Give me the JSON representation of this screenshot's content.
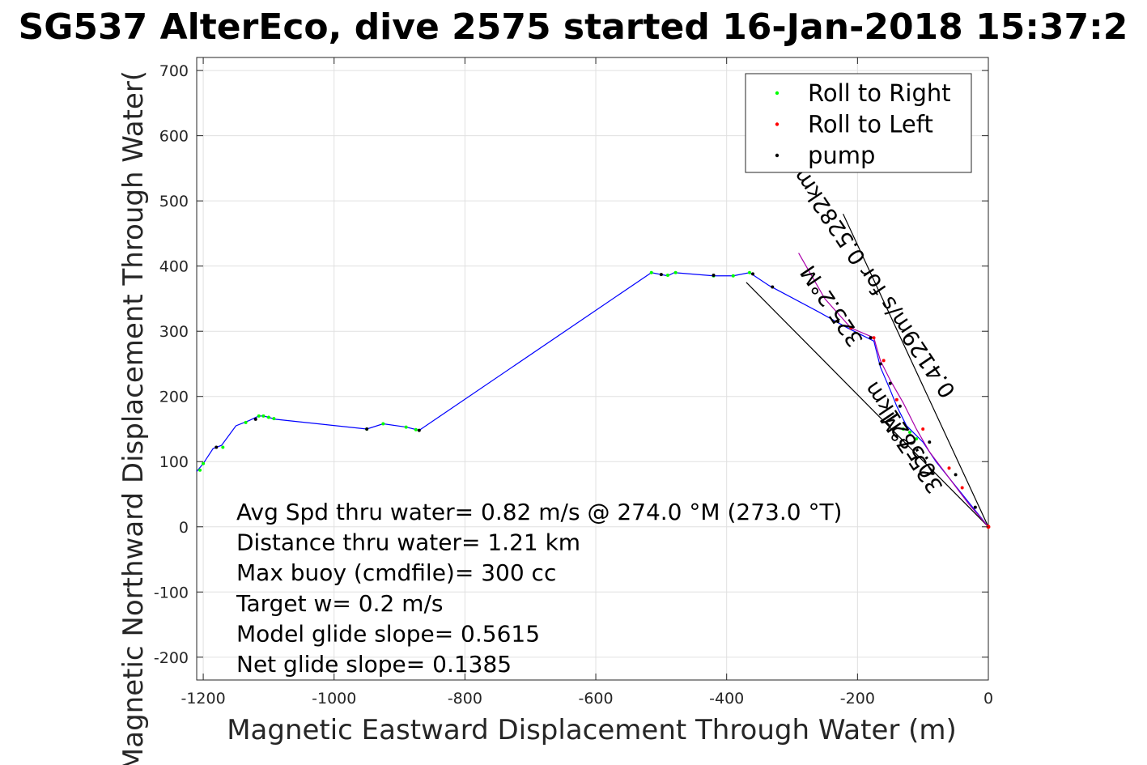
{
  "chart_data": {
    "type": "line",
    "title": "SG537 AlterEco, dive 2575 started 16-Jan-2018 15:37:2",
    "xlabel": "Magnetic Eastward Displacement Through Water (m)",
    "ylabel": "Magnetic Northward Displacement Through Water(",
    "xlim": [
      -1210,
      0
    ],
    "ylim": [
      -235,
      720
    ],
    "xticks": [
      -1200,
      -1000,
      -800,
      -600,
      -400,
      -200,
      0
    ],
    "yticks": [
      -200,
      -100,
      0,
      100,
      200,
      300,
      400,
      500,
      600,
      700
    ],
    "xtick_labels": [
      "-1200",
      "-1000",
      "-800",
      "-600",
      "-400",
      "-200",
      "0"
    ],
    "ytick_labels": [
      "-200",
      "-100",
      "0",
      "100",
      "200",
      "300",
      "400",
      "500",
      "600",
      "700"
    ],
    "grid": true,
    "legend_position": "top-right",
    "legend": [
      {
        "label": "Roll to Right",
        "color": "#00ff00"
      },
      {
        "label": "Roll to Left",
        "color": "#ff0000"
      },
      {
        "label": "pump",
        "color": "#000000"
      }
    ],
    "annotations": [
      "Avg Spd thru water=  0.82 m/s @ 274.0 °M (273.0 °T)",
      "Distance thru water=  1.21 km",
      "Max buoy (cmdfile)= 300 cc",
      "Target w= 0.2 m/s",
      "Model glide slope= 0.5615",
      "Net glide slope= 0.1385"
    ],
    "rotated_labels": [
      {
        "text": "0.5821km",
        "at": [
          -125,
          155
        ],
        "angle_deg": 56
      },
      {
        "text": "325.7°M",
        "at": [
          -108,
          120
        ],
        "angle_deg": 56
      },
      {
        "text": "0.4129m/s for 0.5282km",
        "at": [
          -165,
          380
        ],
        "angle_deg": 56
      },
      {
        "text": "325.2°M",
        "at": [
          -230,
          345
        ],
        "angle_deg": 56
      }
    ],
    "reference_lines": [
      {
        "name": "heading-line-1",
        "x": [
          0,
          -222
        ],
        "y": [
          0,
          480
        ],
        "color": "#000000"
      },
      {
        "name": "heading-line-2",
        "x": [
          0,
          -370
        ],
        "y": [
          0,
          375
        ],
        "color": "#000000"
      }
    ],
    "series": [
      {
        "name": "track",
        "color": "#0000ff",
        "x": [
          -1210,
          -1200,
          -1185,
          -1172,
          -1150,
          -1130,
          -1115,
          -1108,
          -1100,
          -1090,
          -950,
          -925,
          -890,
          -870,
          -515,
          -490,
          -480,
          -420,
          -390,
          -365,
          -335,
          -260,
          -215,
          -175,
          -165,
          -150,
          -140,
          -125,
          -100,
          -80,
          -60,
          -40,
          -20,
          0
        ],
        "y": [
          85,
          97,
          120,
          125,
          155,
          163,
          170,
          170,
          168,
          165,
          150,
          158,
          153,
          148,
          390,
          385,
          390,
          385,
          385,
          390,
          370,
          330,
          305,
          285,
          245,
          210,
          185,
          155,
          130,
          100,
          75,
          50,
          25,
          0
        ]
      },
      {
        "name": "purple-track",
        "color": "#aa00aa",
        "x": [
          -290,
          -250,
          -210,
          -175,
          -165,
          -150,
          -130,
          -110,
          -90,
          -60,
          -30,
          0
        ],
        "y": [
          420,
          350,
          305,
          290,
          255,
          225,
          190,
          150,
          115,
          75,
          35,
          0
        ]
      },
      {
        "name": "Roll to Right",
        "color": "#00ff00",
        "x": [
          -1205,
          -1200,
          -1170,
          -1135,
          -1115,
          -1108,
          -1100,
          -1092,
          -950,
          -925,
          -890,
          -875,
          -515,
          -490,
          -478,
          -420,
          -390,
          -365,
          -130,
          -120,
          -110
        ],
        "y": [
          87,
          97,
          122,
          160,
          170,
          170,
          168,
          166,
          150,
          158,
          153,
          149,
          390,
          386,
          390,
          385,
          385,
          390,
          150,
          145,
          135
        ]
      },
      {
        "name": "Roll to Left",
        "color": "#ff0000",
        "x": [
          -210,
          -175,
          -160,
          -140,
          -100,
          -60,
          -40,
          0
        ],
        "y": [
          305,
          290,
          255,
          195,
          150,
          90,
          60,
          0
        ]
      },
      {
        "name": "pump",
        "color": "#000000",
        "x": [
          -1180,
          -1120,
          -950,
          -870,
          -500,
          -420,
          -360,
          -330,
          -230,
          -180,
          -165,
          -150,
          -135,
          -90,
          -50,
          -20
        ],
        "y": [
          122,
          165,
          150,
          148,
          387,
          386,
          388,
          368,
          315,
          290,
          250,
          220,
          185,
          130,
          80,
          30
        ]
      }
    ]
  }
}
